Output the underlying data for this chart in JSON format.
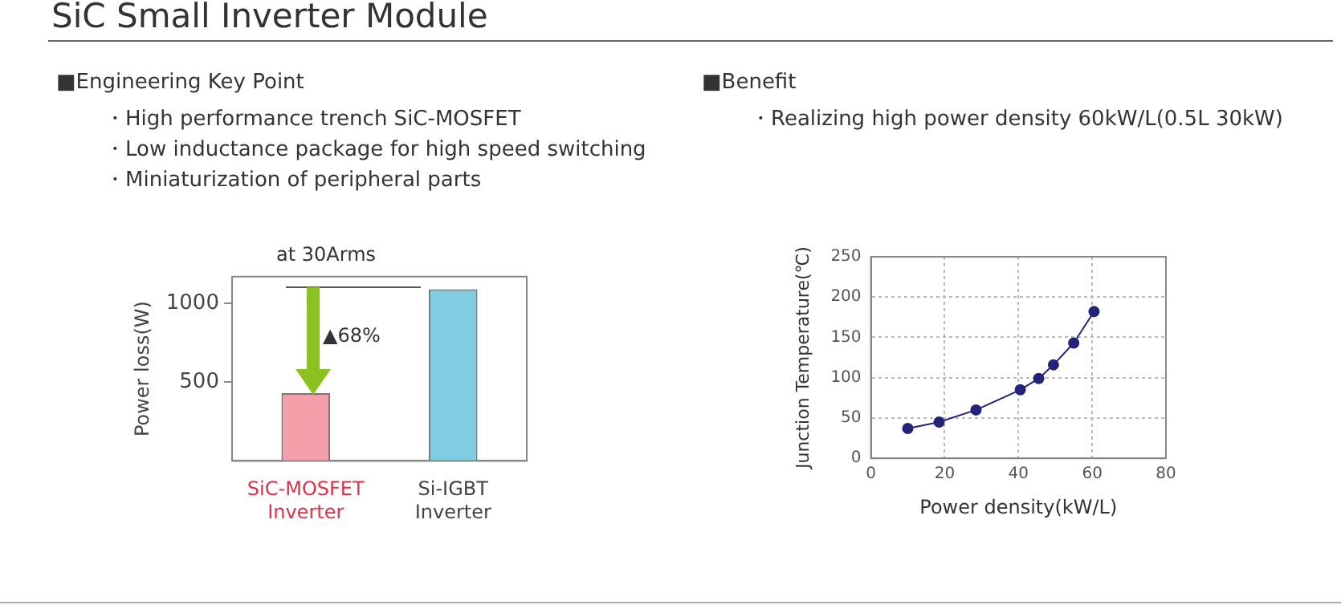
{
  "chart_data": [
    {
      "type": "other",
      "title": "SiC Small Inverter Module",
      "annotations": [
        "■Engineering Key Point",
        "・High performance trench SiC-MOSFET",
        "・Low inductance package for high speed switching",
        "・Miniaturization of peripheral parts",
        "■Benefit",
        "・Realizing high power density 60kW/L(0.5L 30kW)"
      ]
    },
    {
      "type": "bar",
      "title": "at 30Arms",
      "ylabel": "Power loss(W)",
      "categories": [
        "SiC-MOSFET Inverter",
        "Si-IGBT Inverter"
      ],
      "values": [
        430,
        1090
      ],
      "colors": [
        "#f4a0aa",
        "#7ecde3"
      ],
      "ylim": [
        0,
        1170
      ],
      "yticks": [
        500,
        1000
      ],
      "grid": false,
      "annotations": [
        "▲68%"
      ]
    },
    {
      "type": "line",
      "xlabel": "Power density(kW/L)",
      "ylabel": "Junction Temperature(℃)",
      "x": [
        10,
        18.5,
        28.5,
        40.5,
        45.5,
        49.5,
        55,
        60.5
      ],
      "series": [
        {
          "color": "#23237a",
          "values": [
            37,
            45,
            60,
            85,
            99,
            116,
            143,
            182
          ]
        }
      ],
      "xlim": [
        0,
        80
      ],
      "xticks": [
        0,
        20,
        40,
        60,
        80
      ],
      "ylim": [
        0,
        250
      ],
      "yticks": [
        0,
        50,
        100,
        150,
        200,
        250
      ],
      "grid": true,
      "marker": "circle",
      "line_style": "solid"
    }
  ]
}
